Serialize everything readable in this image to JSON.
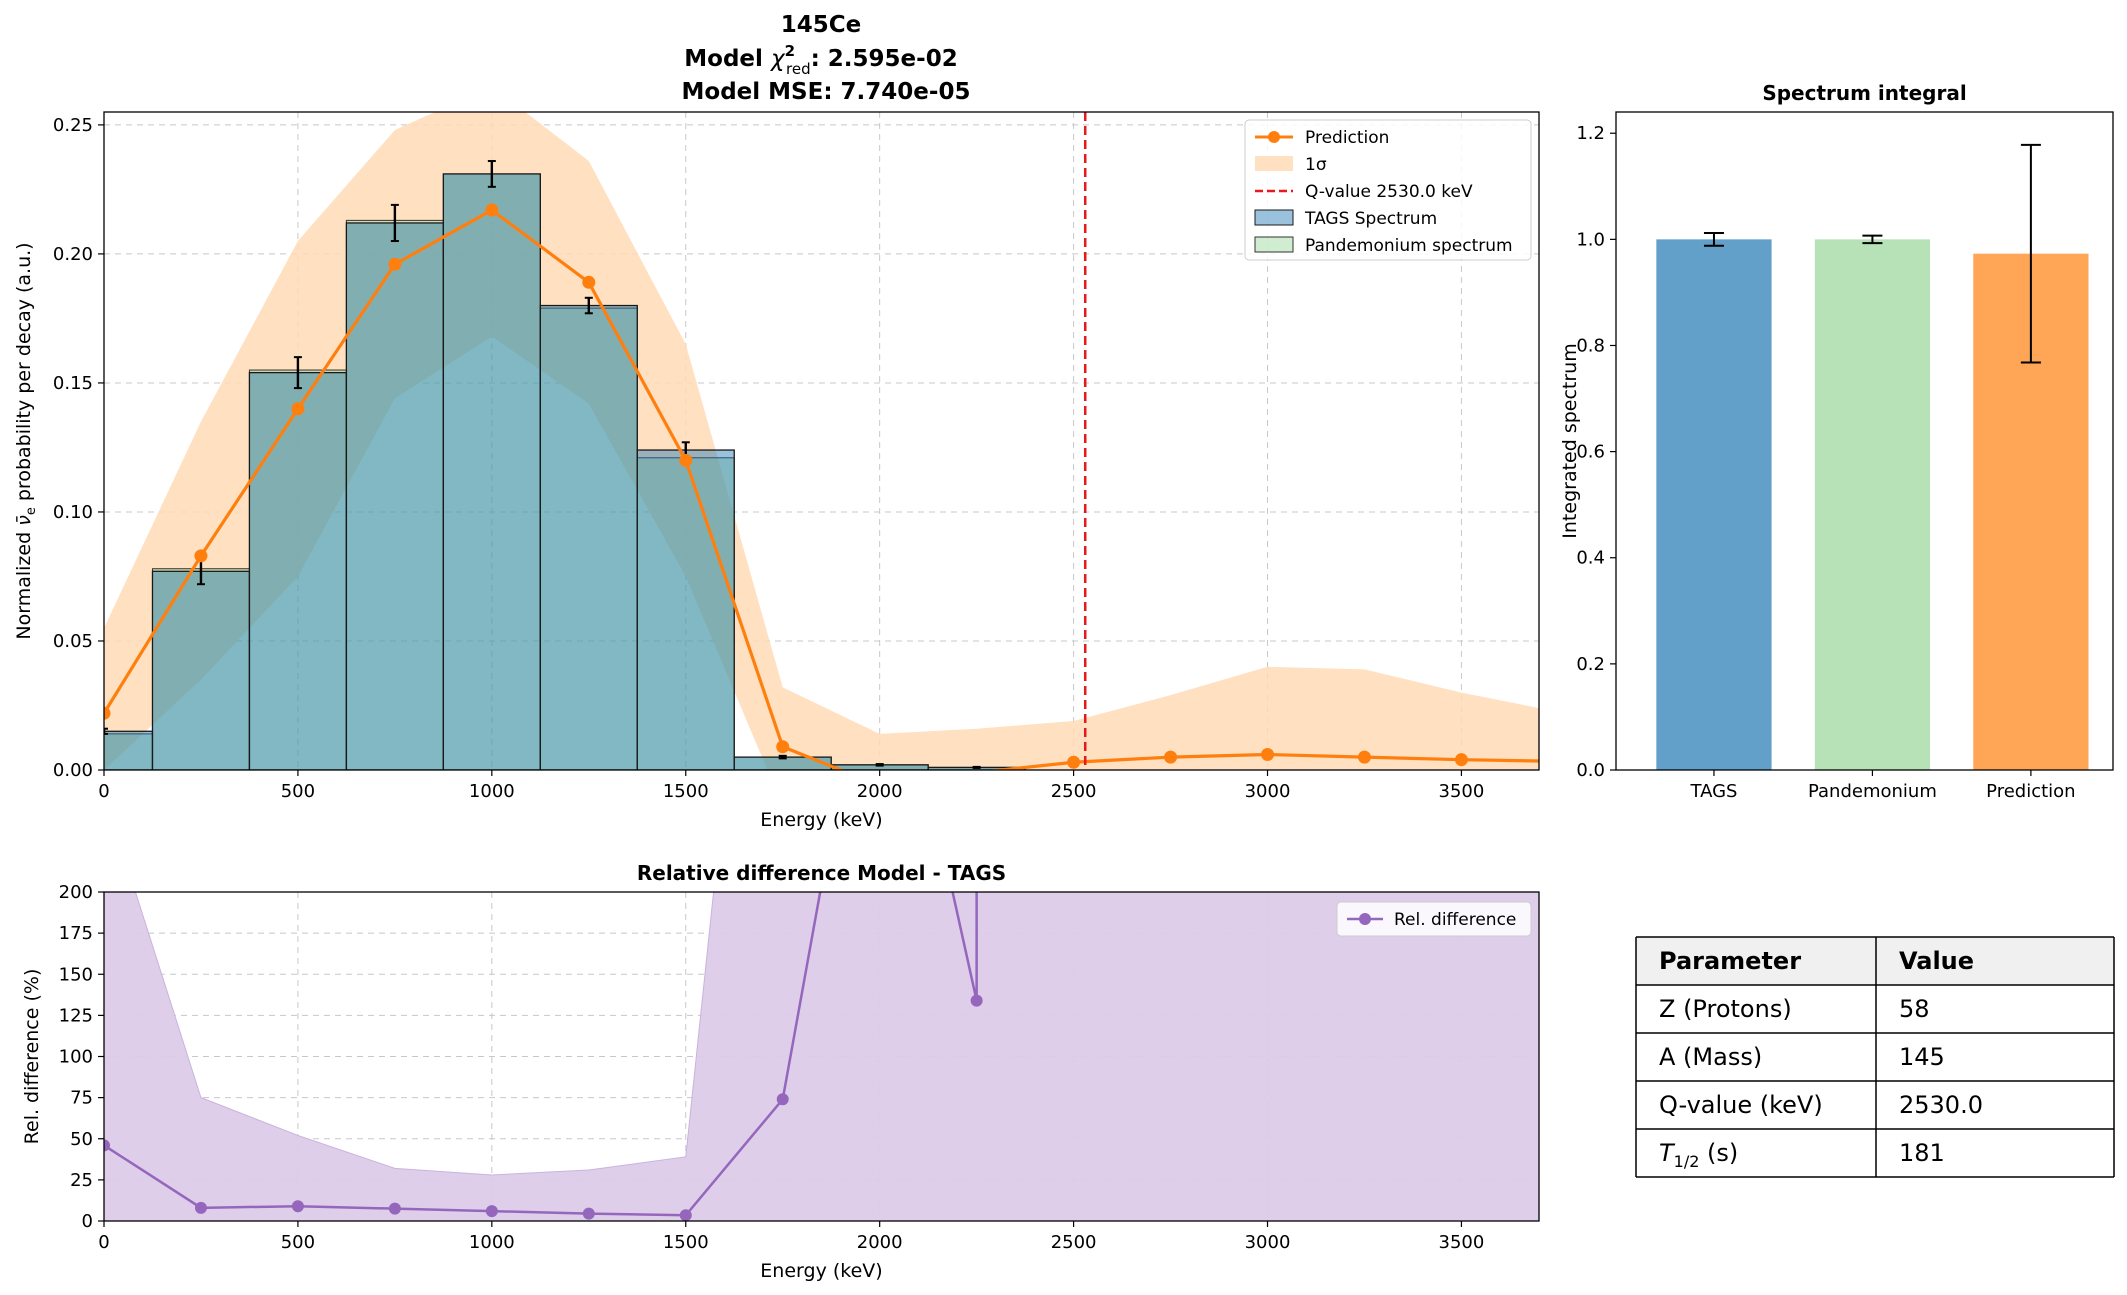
{
  "figure": {
    "title_line1": "145Ce",
    "title_line2_prefix": "Model ",
    "title_line2_chi": "χ",
    "title_line2_sup": "2",
    "title_line2_sub": "red",
    "title_line2_value": ": 2.595e-02",
    "title_line3": "Model MSE: 7.740e-05"
  },
  "colors": {
    "prediction": "#ff7f0e",
    "sigma_band": "#ffdbb6",
    "tags": "#1f77b4",
    "pandemonium": "#98d69a",
    "overlap": "#86b7b2",
    "qvalue": "#e41a1c",
    "reldiff": "#9467bd",
    "reldiff_band": "#dccbe9"
  },
  "chart_data": [
    {
      "id": "spectrum",
      "type": "bar",
      "xlabel": "Energy (keV)",
      "ylabel": "Normalized ν̄e probability per decay (a.u.)",
      "ylabel_parts": [
        "Normalized ",
        "ν̄",
        "e",
        " probability per decay (a.u.)"
      ],
      "xlim": [
        0,
        3700
      ],
      "ylim": [
        0,
        0.255
      ],
      "xticks": [
        "0",
        "500",
        "1000",
        "1500",
        "2000",
        "2500",
        "3000",
        "3500"
      ],
      "xtick_values": [
        0,
        500,
        1000,
        1500,
        2000,
        2500,
        3000,
        3500
      ],
      "yticks": [
        "0.00",
        "0.05",
        "0.10",
        "0.15",
        "0.20",
        "0.25"
      ],
      "ytick_values": [
        0,
        0.05,
        0.1,
        0.15,
        0.2,
        0.25
      ],
      "grid": true,
      "legend_position": "top-right",
      "legend": [
        "Prediction",
        "1σ",
        "Q-value 2530.0 keV",
        "TAGS Spectrum",
        "Pandemonium spectrum"
      ],
      "bin_centers": [
        0,
        250,
        500,
        750,
        1000,
        1250,
        1500,
        1750,
        2000,
        2250,
        2500,
        2750,
        3000,
        3250,
        3500
      ],
      "bin_width": 250,
      "tags_values": [
        0.015,
        0.077,
        0.154,
        0.212,
        0.231,
        0.18,
        0.124,
        0.005,
        0.002,
        0.001,
        0,
        0,
        0,
        0,
        0
      ],
      "tags_errors": [
        0.001,
        0.005,
        0.006,
        0.007,
        0.005,
        0.003,
        0.003,
        0.0005,
        0.0003,
        0.0002,
        0,
        0,
        0,
        0,
        0
      ],
      "pandemonium_values": [
        0.014,
        0.078,
        0.155,
        0.213,
        0.231,
        0.179,
        0.121,
        0.005,
        0.002,
        0.001,
        0,
        0,
        0,
        0,
        0
      ],
      "prediction": {
        "x": [
          0,
          250,
          500,
          750,
          1000,
          1250,
          1500,
          1750,
          2000,
          2250,
          2500,
          2750,
          3000,
          3250,
          3500,
          3700
        ],
        "y": [
          0.022,
          0.083,
          0.14,
          0.196,
          0.217,
          0.189,
          0.12,
          0.009,
          -0.006,
          -0.001,
          0.003,
          0.005,
          0.006,
          0.005,
          0.004,
          0.0035
        ],
        "marker_count": 15
      },
      "sigma_band": {
        "x": [
          0,
          250,
          500,
          750,
          1000,
          1250,
          1500,
          1750,
          2000,
          2250,
          2500,
          2750,
          3000,
          3250,
          3500,
          3700
        ],
        "upper": [
          0.055,
          0.135,
          0.205,
          0.248,
          0.265,
          0.236,
          0.165,
          0.032,
          0.014,
          0.016,
          0.019,
          0.029,
          0.04,
          0.039,
          0.03,
          0.024
        ],
        "lower": [
          0,
          0.035,
          0.075,
          0.144,
          0.168,
          0.142,
          0.075,
          -0.014,
          -0.026,
          -0.018,
          -0.013,
          -0.019,
          -0.028,
          -0.029,
          -0.022,
          -0.017
        ]
      },
      "q_value": 2530
    },
    {
      "id": "integral",
      "type": "bar",
      "title": "Spectrum integral",
      "ylabel": "Integrated spectrum",
      "categories": [
        "TAGS",
        "Pandemonium",
        "Prediction"
      ],
      "values": [
        1.0,
        1.0,
        0.973
      ],
      "errors": [
        0.012,
        0.007,
        0.205
      ],
      "ylim": [
        0,
        1.24
      ],
      "yticks": [
        "0.0",
        "0.2",
        "0.4",
        "0.6",
        "0.8",
        "1.0",
        "1.2"
      ],
      "ytick_values": [
        0,
        0.2,
        0.4,
        0.6,
        0.8,
        1.0,
        1.2
      ],
      "grid": false
    },
    {
      "id": "reldiff",
      "type": "line",
      "title": "Relative difference Model - TAGS",
      "xlabel": "Energy (keV)",
      "ylabel": "Rel. difference (%)",
      "xlim": [
        0,
        3700
      ],
      "ylim": [
        0,
        200
      ],
      "xticks": [
        "0",
        "500",
        "1000",
        "1500",
        "2000",
        "2500",
        "3000",
        "3500"
      ],
      "xtick_values": [
        0,
        500,
        1000,
        1500,
        2000,
        2500,
        3000,
        3500
      ],
      "yticks": [
        "0",
        "25",
        "50",
        "75",
        "100",
        "125",
        "150",
        "175",
        "200"
      ],
      "ytick_values": [
        0,
        25,
        50,
        75,
        100,
        125,
        150,
        175,
        200
      ],
      "grid": true,
      "legend_position": "top-right",
      "legend": [
        "Rel. difference"
      ],
      "x": [
        0,
        250,
        500,
        750,
        1000,
        1250,
        1500,
        1750,
        2000,
        2250
      ],
      "y": [
        46,
        8,
        9,
        7.5,
        6,
        4.5,
        3.5,
        74,
        400,
        134
      ],
      "band_x": [
        0,
        250,
        500,
        750,
        1000,
        1250,
        1500,
        1750,
        2000,
        2250,
        2500,
        2750,
        3000,
        3250,
        3500,
        3700
      ],
      "band_upper": [
        260,
        75,
        52,
        32,
        28,
        31,
        39,
        600,
        600,
        600,
        600,
        600,
        600,
        600,
        600,
        600
      ]
    },
    {
      "id": "parameters",
      "type": "table",
      "headers": [
        "Parameter",
        "Value"
      ],
      "rows": [
        [
          "Z (Protons)",
          "58"
        ],
        [
          "A (Mass)",
          "145"
        ],
        [
          "Q-value (keV)",
          "2530.0"
        ],
        [
          "T1/2 (s)",
          "181"
        ]
      ],
      "halflife_parts": [
        "T",
        "1/2",
        " (s)"
      ]
    }
  ]
}
